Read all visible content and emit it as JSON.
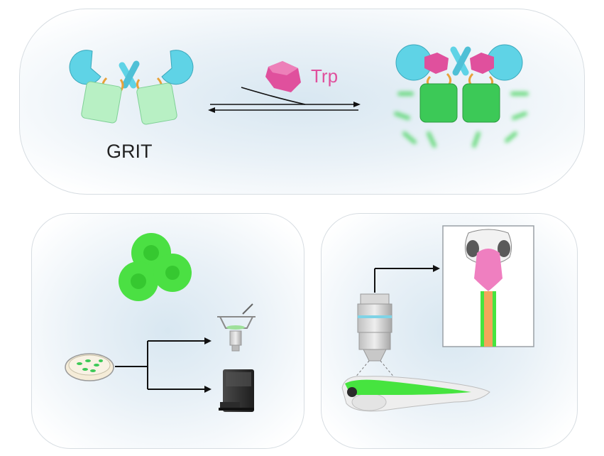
{
  "labels": {
    "sensor_name": "GRIT",
    "ligand_name": "Trp"
  },
  "colors": {
    "binding_domain": "#5fd3e6",
    "linker": "#e8a23a",
    "fp_dim": "#b8f0c4",
    "fp_bright": "#3cc957",
    "ligand": "#e0509d",
    "zebrafish_green": "#46e43f",
    "spinal_orange": "#f2a55a"
  },
  "icons": {
    "cells": "fluorescent-cells-icon",
    "dish": "petri-dish-icon",
    "microscope": "inverted-microscope-icon",
    "plate_reader": "plate-reader-icon",
    "objective": "microscope-objective-icon",
    "fish": "zebrafish-larva-icon",
    "brain": "zebrafish-brain-dorsal-view-icon"
  }
}
